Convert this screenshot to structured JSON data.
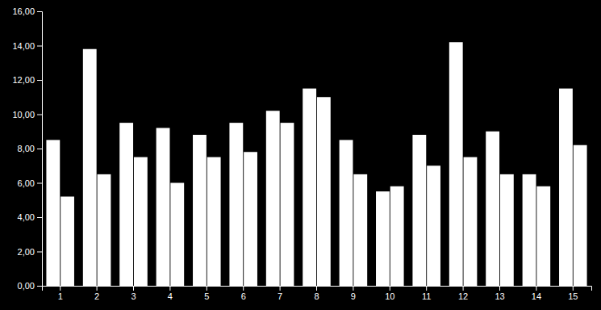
{
  "chart_data": {
    "type": "bar",
    "categories": [
      1,
      2,
      3,
      4,
      5,
      6,
      7,
      8,
      9,
      10,
      11,
      12,
      13,
      14,
      15
    ],
    "series": [
      {
        "color": "#ffffff",
        "values": [
          8.5,
          13.8,
          9.5,
          9.2,
          8.8,
          9.5,
          10.2,
          11.5,
          8.5,
          5.5,
          8.8,
          14.2,
          9.0,
          6.5,
          11.5
        ]
      },
      {
        "color": "#ffffff",
        "values": [
          5.2,
          6.5,
          7.5,
          6.0,
          7.5,
          7.8,
          9.5,
          11.0,
          6.5,
          5.8,
          7.0,
          7.5,
          6.5,
          5.8,
          8.2
        ]
      }
    ],
    "ylim": [
      0,
      16
    ],
    "yticks": [
      {
        "value": 0,
        "label": "0,00"
      },
      {
        "value": 2,
        "label": "2,00"
      },
      {
        "value": 4,
        "label": "4,00"
      },
      {
        "value": 6,
        "label": "6,00"
      },
      {
        "value": 8,
        "label": "8,00"
      },
      {
        "value": 10,
        "label": "10,00"
      },
      {
        "value": 12,
        "label": "12,00"
      },
      {
        "value": 14,
        "label": "14,00"
      },
      {
        "value": 16,
        "label": "16,00"
      }
    ],
    "grid": false
  }
}
